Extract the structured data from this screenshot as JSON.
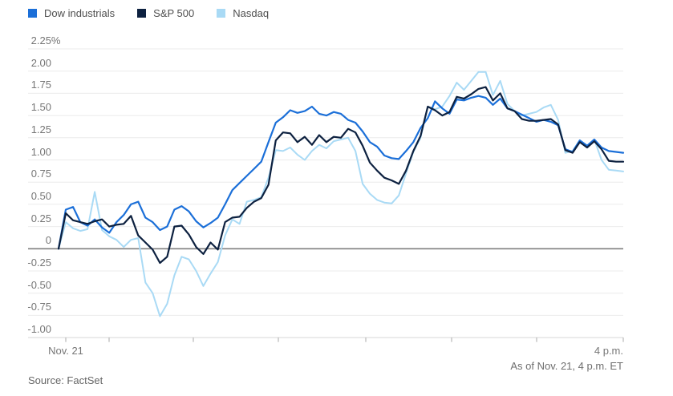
{
  "legend": {
    "items": [
      {
        "id": "dow",
        "label": "Dow industrials",
        "color": "#1b6fd8"
      },
      {
        "id": "sp500",
        "label": "S&P 500",
        "color": "#0d2140"
      },
      {
        "id": "nasdaq",
        "label": "Nasdaq",
        "color": "#a9daf5"
      }
    ]
  },
  "footer": {
    "source": "Source: FactSet",
    "as_of": "As of Nov. 21, 4 p.m. ET"
  },
  "chart_data": {
    "type": "line",
    "title": "",
    "unit": "percent change",
    "x_axis": {
      "start_label": "Nov. 21",
      "end_label": "4 p.m.",
      "minutes_span": 390,
      "step_minutes": 5
    },
    "y_axis": {
      "tick_labels": [
        "2.25%",
        "2.00",
        "1.75",
        "1.50",
        "1.25",
        "1.00",
        "0.75",
        "0.50",
        "0.25",
        "0",
        "-0.25",
        "-0.50",
        "-0.75",
        "-1.00"
      ],
      "tick_values": [
        2.25,
        2.0,
        1.75,
        1.5,
        1.25,
        1.0,
        0.75,
        0.5,
        0.25,
        0,
        -0.25,
        -0.5,
        -0.75,
        -1.0
      ],
      "range": [
        -1.0,
        2.25
      ],
      "grid": true,
      "zero_line": true
    },
    "colors": {
      "grid": "#ebebeb",
      "zero_line": "#7f7f7f",
      "axis_line": "#d8d8d8",
      "tick": "#a9a9a9"
    },
    "series": [
      {
        "name": "Dow industrials",
        "color": "#1b6fd8",
        "values": [
          0.0,
          0.44,
          0.47,
          0.3,
          0.26,
          0.33,
          0.24,
          0.18,
          0.3,
          0.38,
          0.5,
          0.53,
          0.35,
          0.3,
          0.21,
          0.25,
          0.44,
          0.48,
          0.42,
          0.31,
          0.24,
          0.29,
          0.35,
          0.5,
          0.66,
          0.74,
          0.82,
          0.9,
          0.98,
          1.2,
          1.42,
          1.48,
          1.56,
          1.53,
          1.55,
          1.6,
          1.52,
          1.5,
          1.54,
          1.52,
          1.45,
          1.42,
          1.32,
          1.2,
          1.15,
          1.05,
          1.02,
          1.01,
          1.1,
          1.2,
          1.36,
          1.47,
          1.66,
          1.58,
          1.52,
          1.68,
          1.67,
          1.7,
          1.72,
          1.7,
          1.62,
          1.69,
          1.58,
          1.55,
          1.51,
          1.47,
          1.43,
          1.45,
          1.43,
          1.39,
          1.12,
          1.09,
          1.22,
          1.16,
          1.23,
          1.14,
          1.1,
          1.09,
          1.08
        ]
      },
      {
        "name": "S&P 500",
        "color": "#0d2140",
        "values": [
          0.0,
          0.4,
          0.32,
          0.3,
          0.28,
          0.31,
          0.33,
          0.25,
          0.27,
          0.28,
          0.37,
          0.15,
          0.07,
          -0.01,
          -0.16,
          -0.09,
          0.25,
          0.26,
          0.16,
          0.02,
          -0.06,
          0.07,
          -0.01,
          0.3,
          0.35,
          0.36,
          0.46,
          0.53,
          0.57,
          0.72,
          1.22,
          1.31,
          1.3,
          1.2,
          1.26,
          1.17,
          1.28,
          1.2,
          1.26,
          1.25,
          1.35,
          1.31,
          1.16,
          0.97,
          0.88,
          0.8,
          0.77,
          0.73,
          0.88,
          1.1,
          1.27,
          1.6,
          1.56,
          1.5,
          1.54,
          1.71,
          1.69,
          1.74,
          1.8,
          1.82,
          1.67,
          1.75,
          1.58,
          1.55,
          1.46,
          1.44,
          1.44,
          1.45,
          1.46,
          1.4,
          1.11,
          1.08,
          1.2,
          1.14,
          1.21,
          1.12,
          0.99,
          0.98,
          0.98
        ]
      },
      {
        "name": "Nasdaq",
        "color": "#a9daf5",
        "values": [
          0.0,
          0.3,
          0.23,
          0.2,
          0.22,
          0.64,
          0.21,
          0.14,
          0.1,
          0.02,
          0.1,
          0.12,
          -0.38,
          -0.5,
          -0.76,
          -0.62,
          -0.3,
          -0.09,
          -0.12,
          -0.25,
          -0.42,
          -0.28,
          -0.15,
          0.15,
          0.33,
          0.28,
          0.53,
          0.55,
          0.58,
          0.8,
          1.11,
          1.1,
          1.14,
          1.06,
          1.0,
          1.1,
          1.17,
          1.13,
          1.21,
          1.23,
          1.25,
          1.1,
          0.73,
          0.62,
          0.55,
          0.52,
          0.51,
          0.6,
          0.85,
          1.09,
          1.25,
          1.6,
          1.57,
          1.6,
          1.72,
          1.87,
          1.79,
          1.89,
          1.99,
          1.99,
          1.73,
          1.89,
          1.63,
          1.55,
          1.5,
          1.52,
          1.54,
          1.59,
          1.62,
          1.45,
          1.08,
          1.1,
          1.22,
          1.16,
          1.23,
          1.0,
          0.89,
          0.88,
          0.87
        ]
      }
    ]
  }
}
